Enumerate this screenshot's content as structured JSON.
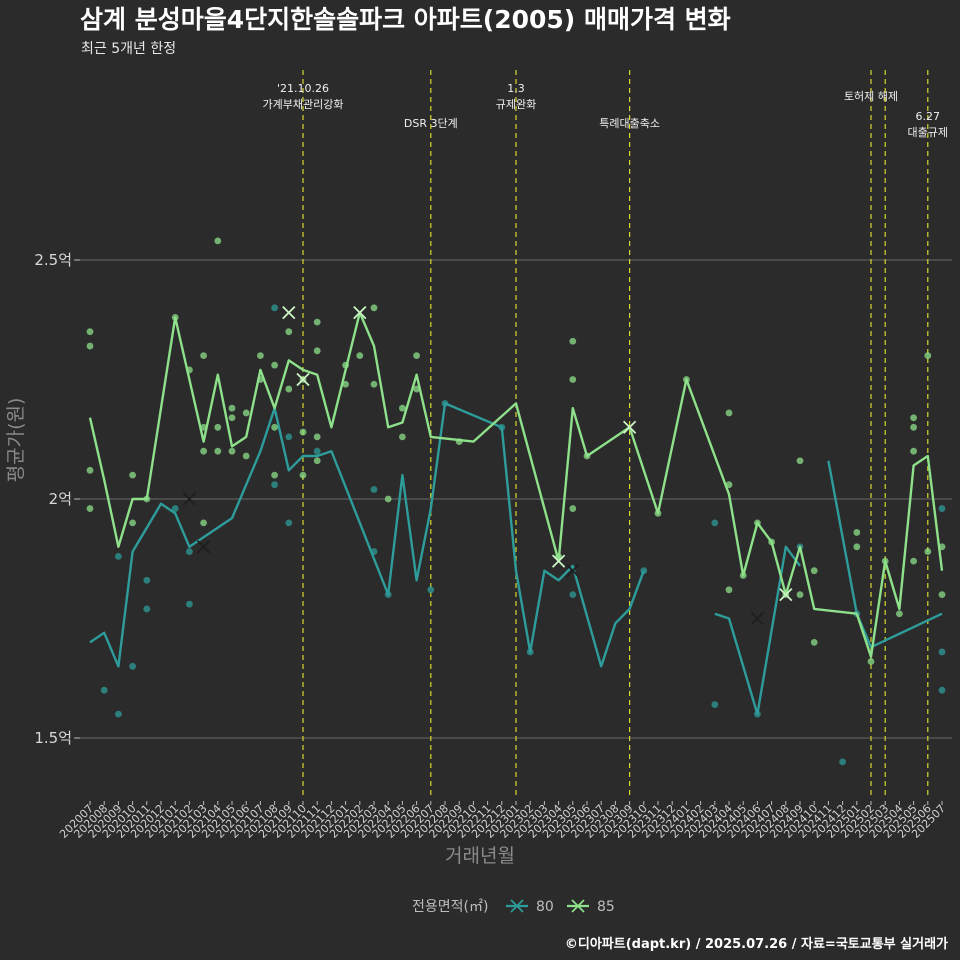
{
  "colors": {
    "background": "#2b2b2b",
    "grid": "#6a6a6a",
    "event_line": "#d8d830",
    "series_80": "#2e9c9a",
    "series_85": "#8ee08a"
  },
  "chart_data": {
    "type": "line",
    "title": "삼계 분성마을4단지한솔솔파크 아파트(2005) 매매가격 변화",
    "subtitle": "최근 5개년 한정",
    "xlabel": "거래년월",
    "ylabel": "평균가(원)",
    "caption": "©디아파트(dapt.kr) / 2025.07.26 / 자료=국토교통부 실거래가",
    "ylim": [
      1.4,
      2.95
    ],
    "yticks": [
      {
        "value": 1.5,
        "label": "1.5억"
      },
      {
        "value": 2.0,
        "label": "2억"
      },
      {
        "value": 2.5,
        "label": "2.5억"
      }
    ],
    "grid": true,
    "categories": [
      "202007",
      "202008",
      "202009",
      "202010",
      "202011",
      "202012",
      "202101",
      "202102",
      "202103",
      "202104",
      "202105",
      "202106",
      "202107",
      "202108",
      "202109",
      "202110",
      "202111",
      "202112",
      "202201",
      "202202",
      "202203",
      "202204",
      "202205",
      "202206",
      "202207",
      "202208",
      "202209",
      "202210",
      "202211",
      "202212",
      "202301",
      "202302",
      "202303",
      "202304",
      "202305",
      "202306",
      "202307",
      "202308",
      "202309",
      "202310",
      "202311",
      "202312",
      "202401",
      "202402",
      "202403",
      "202404",
      "202405",
      "202406",
      "202407",
      "202408",
      "202409",
      "202410",
      "202411",
      "202412",
      "202501",
      "202502",
      "202503",
      "202504",
      "202505",
      "202506",
      "202507"
    ],
    "legend": {
      "title": "전용면적(㎡)",
      "position": "bottom",
      "entries": [
        "80",
        "85"
      ]
    },
    "events": [
      {
        "date": "202110",
        "label_lines": [
          "'21.10.26",
          "가계부채관리강화"
        ],
        "row": 0
      },
      {
        "date": "202207",
        "label_lines": [
          "DSR 3단계"
        ],
        "row": 2
      },
      {
        "date": "202301",
        "label_lines": [
          "1.3",
          "규제완화"
        ],
        "row": 0
      },
      {
        "date": "202309",
        "label_lines": [
          "특례대출축소"
        ],
        "row": 2
      },
      {
        "date": "202502",
        "label_lines": [
          "토허제 해제"
        ],
        "row": 1
      },
      {
        "date": "202503",
        "label_lines": [],
        "row": 0
      },
      {
        "date": "202506",
        "label_lines": [
          "6.27",
          "대출규제"
        ],
        "row": 3
      }
    ],
    "series": [
      {
        "name": "80",
        "line_points": [
          [
            "202007",
            1.7
          ],
          [
            "202008",
            1.72
          ],
          [
            "202009",
            1.65
          ],
          [
            "202010",
            1.89
          ],
          [
            "202011",
            1.94
          ],
          [
            "202012",
            1.99
          ],
          [
            "202101",
            1.97
          ],
          [
            "202102",
            1.9
          ],
          [
            "202105",
            1.96
          ],
          [
            "202106",
            2.03
          ],
          [
            "202107",
            2.1
          ],
          [
            "202108",
            2.19
          ],
          [
            "202109",
            2.06
          ],
          [
            "202110",
            2.09
          ],
          [
            "202111",
            2.09
          ],
          [
            "202112",
            2.1
          ],
          [
            "202204",
            1.8
          ],
          [
            "202205",
            2.05
          ],
          [
            "202206",
            1.83
          ],
          [
            "202207",
            1.98
          ],
          [
            "202208",
            2.2
          ],
          [
            "202212",
            2.15
          ],
          [
            "202301",
            1.85
          ],
          [
            "202302",
            1.68
          ],
          [
            "202303",
            1.85
          ],
          [
            "202304",
            1.83
          ],
          [
            "202305",
            1.86
          ],
          [
            "202307",
            1.65
          ],
          [
            "202308",
            1.74
          ],
          [
            "202309",
            1.77
          ],
          [
            "202310",
            1.85
          ]
        ],
        "line_points_2": [
          [
            "202403",
            1.76
          ],
          [
            "202404",
            1.75
          ],
          [
            "202406",
            1.55
          ],
          [
            "202408",
            1.9
          ],
          [
            "202409",
            1.86
          ]
        ],
        "line_points_3": [
          [
            "202411",
            2.08
          ],
          [
            "202501",
            1.76
          ],
          [
            "202502",
            1.69
          ],
          [
            "202507",
            1.76
          ]
        ],
        "scatter_points": [
          [
            "202008",
            1.6
          ],
          [
            "202009",
            1.55
          ],
          [
            "202009",
            1.88
          ],
          [
            "202010",
            1.65
          ],
          [
            "202011",
            1.77
          ],
          [
            "202011",
            1.83
          ],
          [
            "202101",
            1.98
          ],
          [
            "202102",
            1.78
          ],
          [
            "202102",
            1.89
          ],
          [
            "202108",
            2.4
          ],
          [
            "202108",
            2.03
          ],
          [
            "202109",
            1.95
          ],
          [
            "202109",
            2.13
          ],
          [
            "202111",
            2.1
          ],
          [
            "202203",
            1.89
          ],
          [
            "202203",
            2.02
          ],
          [
            "202204",
            1.8
          ],
          [
            "202207",
            1.81
          ],
          [
            "202208",
            2.2
          ],
          [
            "202212",
            2.15
          ],
          [
            "202302",
            1.68
          ],
          [
            "202305",
            1.8
          ],
          [
            "202310",
            1.85
          ],
          [
            "202403",
            1.57
          ],
          [
            "202403",
            1.95
          ],
          [
            "202406",
            1.55
          ],
          [
            "202409",
            1.9
          ],
          [
            "202412",
            1.45
          ],
          [
            "202501",
            1.76
          ],
          [
            "202507",
            1.6
          ],
          [
            "202507",
            1.68
          ],
          [
            "202507",
            1.98
          ]
        ],
        "x_marks": [
          [
            "202102",
            2.0
          ],
          [
            "202103",
            1.9
          ],
          [
            "202305",
            1.85
          ],
          [
            "202406",
            1.75
          ]
        ]
      },
      {
        "name": "85",
        "line_points": [
          [
            "202007",
            2.17
          ],
          [
            "202008",
            2.04
          ],
          [
            "202009",
            1.9
          ],
          [
            "202010",
            2.0
          ],
          [
            "202011",
            2.0
          ],
          [
            "202101",
            2.38
          ],
          [
            "202102",
            2.25
          ],
          [
            "202103",
            2.12
          ],
          [
            "202104",
            2.26
          ],
          [
            "202105",
            2.11
          ],
          [
            "202106",
            2.13
          ],
          [
            "202107",
            2.27
          ],
          [
            "202108",
            2.19
          ],
          [
            "202109",
            2.29
          ],
          [
            "202110",
            2.27
          ],
          [
            "202111",
            2.26
          ],
          [
            "202112",
            2.15
          ],
          [
            "202202",
            2.39
          ],
          [
            "202203",
            2.32
          ],
          [
            "202204",
            2.15
          ],
          [
            "202205",
            2.16
          ],
          [
            "202206",
            2.26
          ],
          [
            "202207",
            2.13
          ],
          [
            "202210",
            2.12
          ],
          [
            "202301",
            2.2
          ],
          [
            "202304",
            1.87
          ],
          [
            "202305",
            2.19
          ],
          [
            "202306",
            2.09
          ],
          [
            "202309",
            2.15
          ],
          [
            "202311",
            1.97
          ],
          [
            "202401",
            2.25
          ],
          [
            "202404",
            2.01
          ],
          [
            "202405",
            1.84
          ],
          [
            "202406",
            1.95
          ],
          [
            "202407",
            1.91
          ],
          [
            "202408",
            1.8
          ],
          [
            "202409",
            1.9
          ],
          [
            "202410",
            1.77
          ],
          [
            "202501",
            1.76
          ],
          [
            "202502",
            1.67
          ],
          [
            "202503",
            1.87
          ],
          [
            "202504",
            1.77
          ],
          [
            "202505",
            2.07
          ],
          [
            "202506",
            2.09
          ],
          [
            "202507",
            1.85
          ]
        ],
        "scatter_points": [
          [
            "202007",
            2.35
          ],
          [
            "202007",
            2.32
          ],
          [
            "202007",
            2.06
          ],
          [
            "202007",
            1.98
          ],
          [
            "202010",
            2.05
          ],
          [
            "202010",
            1.95
          ],
          [
            "202011",
            2.0
          ],
          [
            "202101",
            2.38
          ],
          [
            "202102",
            2.27
          ],
          [
            "202103",
            2.3
          ],
          [
            "202103",
            2.15
          ],
          [
            "202103",
            2.1
          ],
          [
            "202103",
            1.95
          ],
          [
            "202104",
            2.54
          ],
          [
            "202104",
            2.15
          ],
          [
            "202104",
            2.1
          ],
          [
            "202105",
            2.19
          ],
          [
            "202105",
            2.17
          ],
          [
            "202105",
            2.1
          ],
          [
            "202106",
            2.18
          ],
          [
            "202106",
            2.09
          ],
          [
            "202107",
            2.3
          ],
          [
            "202107",
            2.25
          ],
          [
            "202108",
            2.28
          ],
          [
            "202108",
            2.15
          ],
          [
            "202108",
            2.05
          ],
          [
            "202109",
            2.35
          ],
          [
            "202109",
            2.23
          ],
          [
            "202110",
            2.25
          ],
          [
            "202110",
            2.14
          ],
          [
            "202110",
            2.05
          ],
          [
            "202111",
            2.37
          ],
          [
            "202111",
            2.31
          ],
          [
            "202111",
            2.13
          ],
          [
            "202111",
            2.08
          ],
          [
            "202201",
            2.28
          ],
          [
            "202201",
            2.24
          ],
          [
            "202202",
            2.3
          ],
          [
            "202203",
            2.4
          ],
          [
            "202203",
            2.24
          ],
          [
            "202204",
            2.0
          ],
          [
            "202205",
            2.19
          ],
          [
            "202205",
            2.13
          ],
          [
            "202206",
            2.3
          ],
          [
            "202206",
            2.23
          ],
          [
            "202209",
            2.12
          ],
          [
            "202304",
            1.88
          ],
          [
            "202305",
            2.33
          ],
          [
            "202305",
            2.25
          ],
          [
            "202305",
            1.98
          ],
          [
            "202306",
            2.09
          ],
          [
            "202311",
            1.97
          ],
          [
            "202401",
            2.25
          ],
          [
            "202404",
            2.18
          ],
          [
            "202404",
            2.03
          ],
          [
            "202404",
            1.81
          ],
          [
            "202405",
            1.84
          ],
          [
            "202406",
            1.95
          ],
          [
            "202407",
            1.91
          ],
          [
            "202408",
            1.8
          ],
          [
            "202409",
            2.08
          ],
          [
            "202409",
            1.8
          ],
          [
            "202410",
            1.85
          ],
          [
            "202410",
            1.7
          ],
          [
            "202501",
            1.93
          ],
          [
            "202501",
            1.9
          ],
          [
            "202502",
            1.66
          ],
          [
            "202503",
            1.87
          ],
          [
            "202504",
            1.76
          ],
          [
            "202505",
            2.17
          ],
          [
            "202505",
            2.15
          ],
          [
            "202505",
            2.1
          ],
          [
            "202505",
            1.87
          ],
          [
            "202506",
            2.3
          ],
          [
            "202506",
            1.89
          ],
          [
            "202507",
            1.9
          ],
          [
            "202507",
            1.8
          ]
        ],
        "x_marks": [
          [
            "202109",
            2.39
          ],
          [
            "202110",
            2.25
          ],
          [
            "202202",
            2.39
          ],
          [
            "202304",
            1.87
          ],
          [
            "202309",
            2.15
          ],
          [
            "202408",
            1.8
          ]
        ]
      }
    ]
  }
}
